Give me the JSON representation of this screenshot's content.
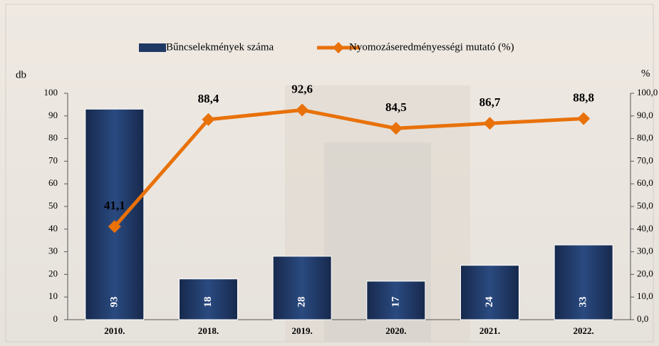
{
  "chart_data": {
    "type": "bar-line",
    "categories": [
      "2010.",
      "2018.",
      "2019.",
      "2020.",
      "2021.",
      "2022."
    ],
    "y_label": "db",
    "y2_label": "%",
    "ylim": [
      0,
      100
    ],
    "yticks": [
      0,
      10,
      20,
      30,
      40,
      50,
      60,
      70,
      80,
      90,
      100
    ],
    "y2lim": [
      0,
      100
    ],
    "y2ticks": [
      {
        "value": 0,
        "label": "0,0"
      },
      {
        "value": 10,
        "label": "10,0"
      },
      {
        "value": 20,
        "label": "20,0"
      },
      {
        "value": 30,
        "label": "30,0"
      },
      {
        "value": 40,
        "label": "40,0"
      },
      {
        "value": 50,
        "label": "50,0"
      },
      {
        "value": 60,
        "label": "60,0"
      },
      {
        "value": 70,
        "label": "70,0"
      },
      {
        "value": 80,
        "label": "80,0"
      },
      {
        "value": 90,
        "label": "90,0"
      },
      {
        "value": 100,
        "label": "100,0"
      }
    ],
    "series": [
      {
        "name": "Bűncselekmények száma",
        "type": "bar",
        "color": "#1f3864",
        "values": [
          93,
          18,
          28,
          17,
          24,
          33
        ]
      },
      {
        "name": "Nyomozáseredményességi mutató (%)",
        "type": "line",
        "axis": "y2",
        "color": "#e8710a",
        "values": [
          41.1,
          88.4,
          92.6,
          84.5,
          86.7,
          88.8
        ],
        "value_labels": [
          "41,1",
          "88,4",
          "92,6",
          "84,5",
          "86,7",
          "88,8"
        ]
      }
    ]
  }
}
